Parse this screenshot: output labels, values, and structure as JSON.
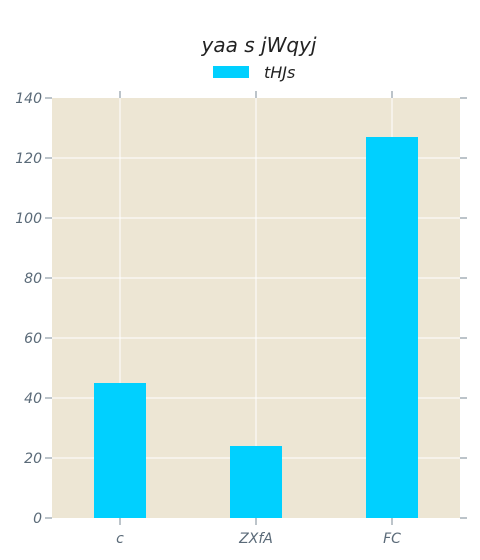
{
  "chart_data": {
    "type": "bar",
    "title": "yaa s jWqyj",
    "xlabel": "",
    "ylabel": "",
    "categories": [
      "c",
      "ZXfA",
      "FC"
    ],
    "series": [
      {
        "name": "tHJs",
        "values": [
          45,
          24,
          127
        ],
        "color": "#00d0ff"
      }
    ],
    "ylim": [
      0,
      140
    ],
    "yticks": [
      "0",
      "20",
      "40",
      "60",
      "80",
      "100",
      "120",
      "140"
    ],
    "grid": true,
    "legend_position": "top-center",
    "plot_background": "#ede6d4",
    "grid_color": "#ffffff"
  }
}
